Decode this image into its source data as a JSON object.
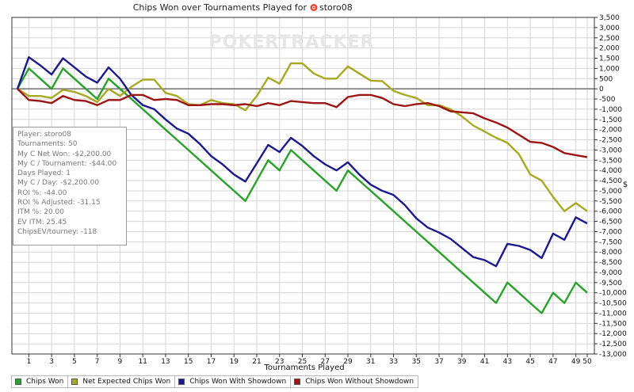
{
  "chart_data": {
    "type": "line",
    "title": "Chips Won over Tournaments Played for",
    "player_name": "storo08",
    "player_icon": "poker-chip-icon",
    "watermark": "POKERTRACKER",
    "xlabel": "Tournaments Played",
    "ylabel": "$",
    "xlim": [
      0,
      50
    ],
    "ylim": [
      -13000,
      3500
    ],
    "x_ticks": [
      1,
      3,
      5,
      7,
      9,
      11,
      13,
      15,
      17,
      19,
      21,
      23,
      25,
      27,
      29,
      31,
      33,
      35,
      37,
      39,
      41,
      43,
      45,
      47,
      49,
      50
    ],
    "y_tick_step": 500,
    "grid": true,
    "legend_position": "bottom",
    "x": [
      0,
      1,
      2,
      3,
      4,
      5,
      6,
      7,
      8,
      9,
      10,
      11,
      12,
      13,
      14,
      15,
      16,
      17,
      18,
      19,
      20,
      21,
      22,
      23,
      24,
      25,
      26,
      27,
      28,
      29,
      30,
      31,
      32,
      33,
      34,
      35,
      36,
      37,
      38,
      39,
      40,
      41,
      42,
      43,
      44,
      45,
      46,
      47,
      48,
      49,
      50
    ],
    "series": [
      {
        "name": "Chips Won",
        "color": "#2aa12a",
        "values": [
          0,
          1000,
          500,
          0,
          1000,
          500,
          0,
          -500,
          500,
          0,
          -500,
          -1000,
          -1500,
          -2000,
          -2500,
          -3000,
          -3500,
          -4000,
          -4500,
          -5000,
          -5500,
          -4500,
          -3500,
          -4000,
          -3000,
          -3500,
          -4000,
          -4500,
          -5000,
          -4000,
          -4500,
          -5000,
          -5500,
          -6000,
          -6500,
          -7000,
          -7500,
          -8000,
          -8500,
          -9000,
          -9500,
          -10000,
          -10500,
          -9500,
          -10000,
          -10500,
          -11000,
          -10000,
          -10500,
          -9500,
          -10000
        ]
      },
      {
        "name": "Net Expected Chips Won",
        "color": "#a8a821",
        "values": [
          0,
          -350,
          -350,
          -450,
          -50,
          -150,
          -350,
          -650,
          0,
          -350,
          100,
          450,
          450,
          -200,
          -350,
          -750,
          -800,
          -550,
          -700,
          -750,
          -1050,
          -350,
          550,
          250,
          1250,
          1250,
          750,
          500,
          500,
          1100,
          750,
          400,
          380,
          -100,
          -300,
          -450,
          -800,
          -800,
          -1000,
          -1350,
          -1800,
          -2100,
          -2400,
          -2650,
          -3200,
          -4200,
          -4500,
          -5300,
          -6000,
          -5600,
          -6000
        ]
      },
      {
        "name": "Chips Won With Showdown",
        "color": "#1a1a8c",
        "values": [
          0,
          1550,
          1150,
          700,
          1500,
          1050,
          600,
          300,
          1050,
          500,
          -300,
          -800,
          -1000,
          -1500,
          -1950,
          -2200,
          -2700,
          -3300,
          -3700,
          -4200,
          -4550,
          -3650,
          -2750,
          -3100,
          -2400,
          -2800,
          -3300,
          -3700,
          -4000,
          -3600,
          -4200,
          -4700,
          -5000,
          -5200,
          -5700,
          -6350,
          -6800,
          -7050,
          -7350,
          -7800,
          -8250,
          -8400,
          -8700,
          -7600,
          -7700,
          -7900,
          -8300,
          -7100,
          -7400,
          -6300,
          -6600
        ]
      },
      {
        "name": "Chips Won Without Showdown",
        "color": "#9c1414",
        "values": [
          0,
          -550,
          -600,
          -700,
          -350,
          -550,
          -600,
          -800,
          -550,
          -550,
          -300,
          -300,
          -550,
          -500,
          -550,
          -800,
          -800,
          -750,
          -750,
          -800,
          -750,
          -850,
          -700,
          -800,
          -600,
          -650,
          -700,
          -700,
          -900,
          -400,
          -300,
          -300,
          -450,
          -750,
          -850,
          -750,
          -700,
          -850,
          -1100,
          -1150,
          -1200,
          -1450,
          -1650,
          -1900,
          -2250,
          -2600,
          -2650,
          -2850,
          -3150,
          -3250,
          -3350
        ]
      }
    ]
  },
  "stats": [
    {
      "label": "Player:",
      "value": "storo08"
    },
    {
      "label": "Tournaments:",
      "value": "50"
    },
    {
      "label": "My C Net Won:",
      "value": "-$2,200.00"
    },
    {
      "label": "My C / Tournament:",
      "value": "-$44.00"
    },
    {
      "label": "Days Played:",
      "value": "1"
    },
    {
      "label": "My C / Day:",
      "value": "-$2,200.00"
    },
    {
      "label": "ROI %:",
      "value": "-44.00"
    },
    {
      "label": "ROI % Adjusted:",
      "value": "-31.15"
    },
    {
      "label": "ITM %:",
      "value": "20.00"
    },
    {
      "label": "EV ITM:",
      "value": "25.45"
    },
    {
      "label": "ChipsEV/tourney:",
      "value": "-118"
    }
  ]
}
